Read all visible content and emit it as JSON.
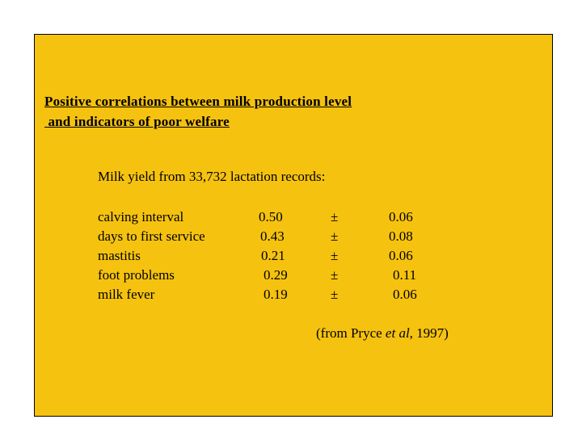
{
  "slide": {
    "background_color": "#f5c20f",
    "title_line1": "Positive correlations between milk production level",
    "title_line2": " and indicators of poor welfare",
    "intro": "Milk yield from 33,732 lactation records:",
    "rows": [
      {
        "label": "calving interval",
        "value": "0.50",
        "pm": "±",
        "se": "0.06"
      },
      {
        "label": "days to first service",
        "value": "0.43",
        "pm": "±",
        "se": "0.08"
      },
      {
        "label": "mastitis",
        "value": "0.21",
        "pm": "±",
        "se": "0.06"
      },
      {
        "label": "foot problems",
        "value": "0.29",
        "pm": "±",
        "se": "0.11"
      },
      {
        "label": "milk fever",
        "value": "0.19",
        "pm": "±",
        "se": "0.06"
      }
    ],
    "source_prefix": "(from Pryce ",
    "source_italic": "et al",
    "source_suffix": ", 1997)"
  }
}
